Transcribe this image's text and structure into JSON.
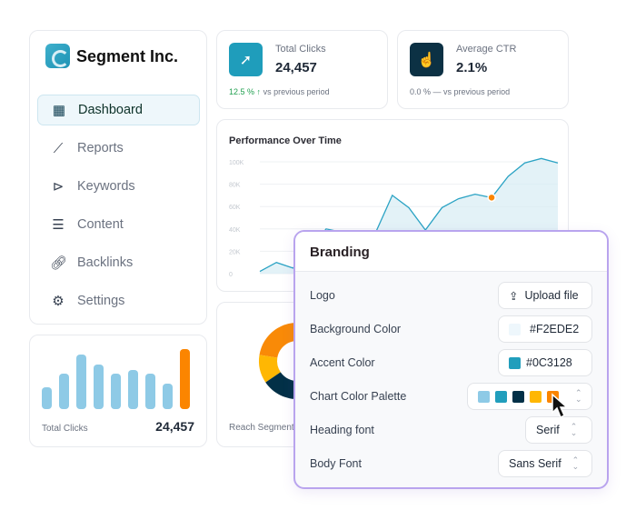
{
  "sidebar": {
    "company": "Segment Inc.",
    "items": [
      {
        "label": "Dashboard",
        "icon": "dashboard-icon",
        "active": true
      },
      {
        "label": "Reports",
        "icon": "chart-line-icon"
      },
      {
        "label": "Keywords",
        "icon": "tag-icon"
      },
      {
        "label": "Content",
        "icon": "content-icon"
      },
      {
        "label": "Backlinks",
        "icon": "link-icon"
      },
      {
        "label": "Settings",
        "icon": "gear-icon"
      }
    ]
  },
  "mini_bars": {
    "label": "Total Clicks",
    "value": "24,457",
    "bars": [
      32,
      52,
      80,
      66,
      52,
      57,
      52,
      37,
      88
    ],
    "highlight": 8
  },
  "stats": [
    {
      "label": "Total Clicks",
      "value": "24,457",
      "change": "12.5 %",
      "arrow": "↑",
      "suffix": "vs previous period",
      "color": "#1f9dbb"
    },
    {
      "label": "Average CTR",
      "value": "2.1%",
      "change": "0.0 %",
      "arrow": "—",
      "suffix": "vs previous period",
      "color": "#0c3128"
    }
  ],
  "chart_data": {
    "type": "area",
    "title": "Performance Over Time",
    "yticks": [
      "100K",
      "80K",
      "60K",
      "40K",
      "20K",
      "0"
    ],
    "ylim": [
      0,
      100
    ],
    "values": [
      2,
      10,
      5,
      20,
      40,
      37,
      30,
      37,
      70,
      59,
      39,
      59,
      67,
      71,
      68,
      87,
      99,
      103,
      99
    ],
    "highlight_index": 14
  },
  "reach": {
    "label": "Reach Segments",
    "slices": [
      {
        "value": 25,
        "color": "#f98a07"
      },
      {
        "value": 12,
        "color": "#ffb703"
      },
      {
        "value": 33,
        "color": "#023047"
      }
    ]
  },
  "branding": {
    "title": "Branding",
    "logo_label": "Logo",
    "upload_label": "Upload file",
    "bg_label": "Background Color",
    "bg_value": "#F2EDE2",
    "bg_swatch": "#eef7fc",
    "accent_label": "Accent Color",
    "accent_value": "#0C3128",
    "accent_swatch": "#219ebc",
    "palette_label": "Chart Color Palette",
    "palette": [
      "#8ecae6",
      "#219ebc",
      "#023047",
      "#ffb703",
      "#fb8500"
    ],
    "heading_label": "Heading font",
    "heading_value": "Serif",
    "body_label": "Body Font",
    "body_value": "Sans Serif"
  }
}
